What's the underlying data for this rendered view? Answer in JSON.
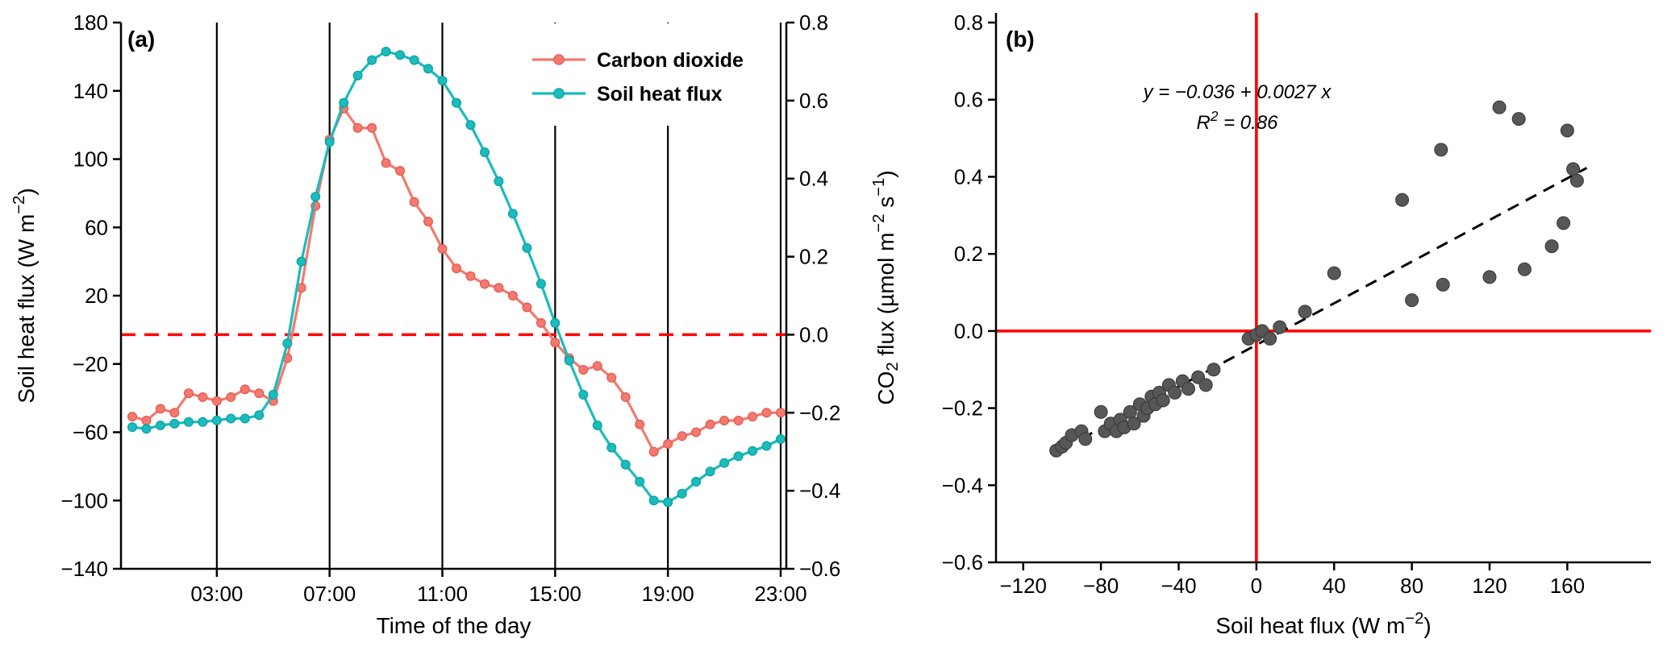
{
  "figure": {
    "background": "#ffffff",
    "colors": {
      "carbon_dioxide": "#F4796E",
      "carbon_dioxide_edge": "#E0584E",
      "soil_heat_flux": "#1BBCBD",
      "soil_heat_flux_edge": "#0C9EA0",
      "reference_red": "#FF0000",
      "scatter_gray": "#575757",
      "scatter_gray_edge": "#363636",
      "axis_black": "#000000"
    }
  },
  "chart_data": [
    {
      "id": "panel_a",
      "type": "line",
      "panel_label": "(a)",
      "xlabel": "Time of the day",
      "ylabel_left": "Soil heat flux  (W m^{−2})",
      "x_domain": [
        -0.4,
        23.2
      ],
      "x_tick_values": [
        3,
        7,
        11,
        15,
        19,
        23
      ],
      "x_tick_labels": [
        "03:00",
        "07:00",
        "11:00",
        "15:00",
        "19:00",
        "23:00"
      ],
      "y_left_domain": [
        -140,
        180
      ],
      "y_left_tick_values": [
        180,
        140,
        100,
        60,
        20,
        -20,
        -60,
        -100,
        -140
      ],
      "y_left_tick_labels": [
        "180",
        "140",
        "100",
        "60",
        "20",
        "−20",
        "−60",
        "−100",
        "−140"
      ],
      "y_right_domain": [
        -0.6,
        0.8
      ],
      "y_right_tick_values": [
        0.8,
        0.6,
        0.4,
        0.2,
        0.0,
        -0.2,
        -0.4,
        -0.6
      ],
      "y_right_tick_labels": [
        "0.8",
        "0.6",
        "0.4",
        "0.2",
        "0.0",
        "−0.2",
        "−0.4",
        "−0.6"
      ],
      "vertical_gridlines": [
        3,
        7,
        11,
        15,
        19,
        23
      ],
      "zero_reference_line": {
        "axis": "right",
        "value": 0,
        "style": "dashed",
        "color": "#FF0000"
      },
      "x_hours": [
        0,
        0.5,
        1,
        1.5,
        2,
        2.5,
        3,
        3.5,
        4,
        4.5,
        5,
        5.5,
        6,
        6.5,
        7,
        7.5,
        8,
        8.5,
        9,
        9.5,
        10,
        10.5,
        11,
        11.5,
        12,
        12.5,
        13,
        13.5,
        14,
        14.5,
        15,
        15.5,
        16,
        16.5,
        17,
        17.5,
        18,
        18.5,
        19,
        19.5,
        20,
        20.5,
        21,
        21.5,
        22,
        22.5,
        23
      ],
      "series": [
        {
          "name": "Carbon dioxide",
          "axis": "right",
          "color": "#F4796E",
          "edge": "#E0584E",
          "values": [
            -0.21,
            -0.22,
            -0.19,
            -0.2,
            -0.15,
            -0.16,
            -0.17,
            -0.16,
            -0.14,
            -0.15,
            -0.17,
            -0.06,
            0.12,
            0.33,
            0.5,
            0.58,
            0.53,
            0.53,
            0.44,
            0.42,
            0.34,
            0.29,
            0.22,
            0.17,
            0.15,
            0.13,
            0.12,
            0.1,
            0.07,
            0.03,
            -0.02,
            -0.06,
            -0.09,
            -0.08,
            -0.11,
            -0.16,
            -0.23,
            -0.3,
            -0.28,
            -0.26,
            -0.25,
            -0.23,
            -0.22,
            -0.22,
            -0.21,
            -0.2,
            -0.2
          ]
        },
        {
          "name": "Soil heat flux",
          "axis": "left",
          "color": "#1BBCBD",
          "edge": "#0C9EA0",
          "values": [
            -57,
            -58,
            -56,
            -55,
            -54,
            -54,
            -53,
            -52,
            -52,
            -50,
            -38,
            -8,
            40,
            78,
            110,
            133,
            149,
            158,
            163,
            161,
            158,
            153,
            146,
            133,
            120,
            104,
            87,
            68,
            48,
            27,
            4,
            -18,
            -38,
            -56,
            -69,
            -79,
            -89,
            -100,
            -101,
            -96,
            -89,
            -83,
            -78,
            -74,
            -71,
            -68,
            -64
          ]
        }
      ],
      "legend": {
        "entries": [
          "Carbon dioxide",
          "Soil heat flux"
        ],
        "position": "upper-center"
      }
    },
    {
      "id": "panel_b",
      "type": "scatter",
      "panel_label": "(b)",
      "xlabel": "Soil heat flux (W m^{−2})",
      "ylabel": "CO_{2} flux (µmol m^{−2} s^{−1})",
      "x_domain": [
        -134,
        203
      ],
      "x_tick_values": [
        -120,
        -80,
        -40,
        0,
        40,
        80,
        120,
        160
      ],
      "x_tick_labels": [
        "−120",
        "−80",
        "−40",
        "0",
        "40",
        "80",
        "120",
        "160"
      ],
      "y_domain": [
        -0.6,
        0.8
      ],
      "y_tick_values": [
        0.8,
        0.6,
        0.4,
        0.2,
        0.0,
        -0.2,
        -0.4,
        -0.6
      ],
      "y_tick_labels": [
        "0.8",
        "0.6",
        "0.4",
        "0.2",
        "0.0",
        "−0.2",
        "−0.4",
        "−0.6"
      ],
      "crosshair": {
        "x": 0,
        "y": 0,
        "color": "#FF0000"
      },
      "regression": {
        "slope": 0.0027,
        "intercept": -0.036,
        "x_start": -90,
        "x_end": 170,
        "style": "dashed",
        "color": "#000000"
      },
      "annotation": {
        "line1": "y = −0.036 + 0.0027 x",
        "line2": "R^{2} = 0.86"
      },
      "points": [
        [
          -103,
          -0.31
        ],
        [
          -100,
          -0.3
        ],
        [
          -98,
          -0.29
        ],
        [
          -95,
          -0.27
        ],
        [
          -90,
          -0.26
        ],
        [
          -88,
          -0.28
        ],
        [
          -80,
          -0.21
        ],
        [
          -78,
          -0.26
        ],
        [
          -75,
          -0.24
        ],
        [
          -72,
          -0.26
        ],
        [
          -70,
          -0.23
        ],
        [
          -68,
          -0.25
        ],
        [
          -65,
          -0.21
        ],
        [
          -63,
          -0.24
        ],
        [
          -60,
          -0.19
        ],
        [
          -58,
          -0.22
        ],
        [
          -56,
          -0.2
        ],
        [
          -54,
          -0.17
        ],
        [
          -52,
          -0.19
        ],
        [
          -50,
          -0.16
        ],
        [
          -48,
          -0.18
        ],
        [
          -45,
          -0.14
        ],
        [
          -42,
          -0.16
        ],
        [
          -38,
          -0.13
        ],
        [
          -35,
          -0.15
        ],
        [
          -30,
          -0.12
        ],
        [
          -26,
          -0.14
        ],
        [
          -22,
          -0.1
        ],
        [
          -4,
          -0.02
        ],
        [
          0,
          -0.01
        ],
        [
          3,
          0.0
        ],
        [
          7,
          -0.02
        ],
        [
          12,
          0.01
        ],
        [
          25,
          0.05
        ],
        [
          40,
          0.15
        ],
        [
          75,
          0.34
        ],
        [
          80,
          0.08
        ],
        [
          95,
          0.47
        ],
        [
          96,
          0.12
        ],
        [
          120,
          0.14
        ],
        [
          125,
          0.58
        ],
        [
          135,
          0.55
        ],
        [
          138,
          0.16
        ],
        [
          152,
          0.22
        ],
        [
          158,
          0.28
        ],
        [
          160,
          0.52
        ],
        [
          163,
          0.42
        ],
        [
          165,
          0.39
        ]
      ]
    }
  ]
}
